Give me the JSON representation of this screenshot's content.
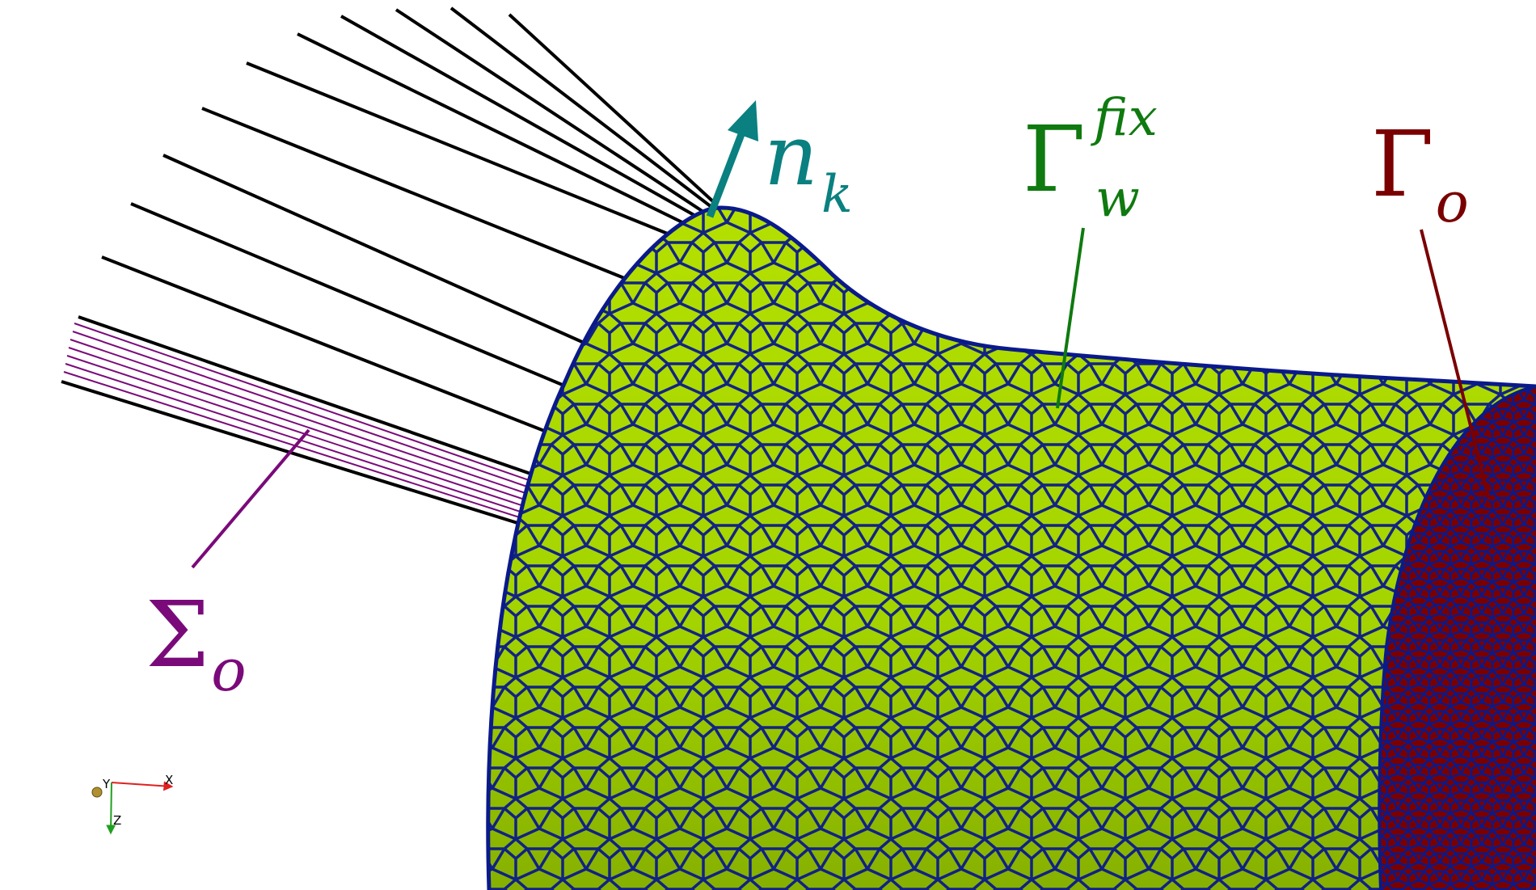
{
  "colors": {
    "surface": "#a4d400",
    "surface_shade": "#86b000",
    "mesh_edge": "#0a1a8a",
    "outlet": "#7a0000",
    "normal_vector": "#0a8080",
    "fix_wall": "#0f7a0f",
    "sigma": "#7a0a7a",
    "rays": "#000000"
  },
  "labels": {
    "normal": {
      "symbol": "n",
      "subscript": "k"
    },
    "fix_wall": {
      "symbol": "Γ",
      "subscript": "w",
      "superscript": "fix"
    },
    "outlet": {
      "symbol": "Γ",
      "subscript": "o"
    },
    "sigma": {
      "symbol": "Σ",
      "subscript": "o"
    }
  },
  "axes_triad": {
    "x": "X",
    "y": "Y",
    "z": "Z"
  }
}
